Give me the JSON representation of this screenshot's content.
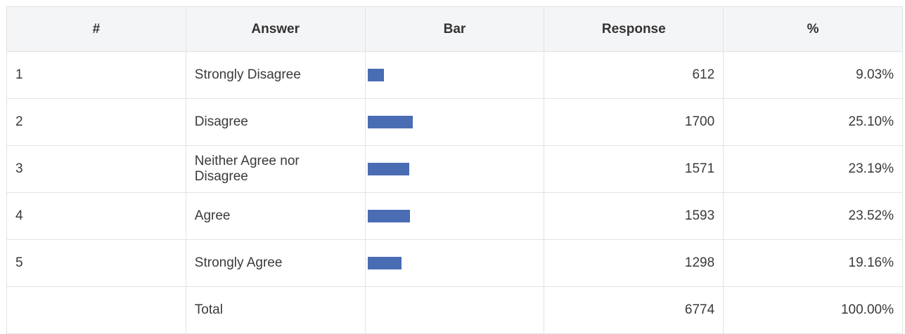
{
  "table": {
    "columns": [
      "#",
      "Answer",
      "Bar",
      "Response",
      "%"
    ],
    "rows": [
      [
        1,
        "Strongly Disagree",
        612,
        "9.03%"
      ],
      [
        2,
        "Disagree",
        1700,
        "25.10%"
      ],
      [
        3,
        "Neither Agree nor Disagree",
        1571,
        "23.19%"
      ],
      [
        4,
        "Agree",
        1593,
        "23.52%"
      ],
      [
        5,
        "Strongly Agree",
        1298,
        "19.16%"
      ]
    ],
    "total": {
      "label": "Total",
      "response": 6774,
      "percent": "100.00%"
    },
    "bar_color": "#4a6cb3"
  }
}
